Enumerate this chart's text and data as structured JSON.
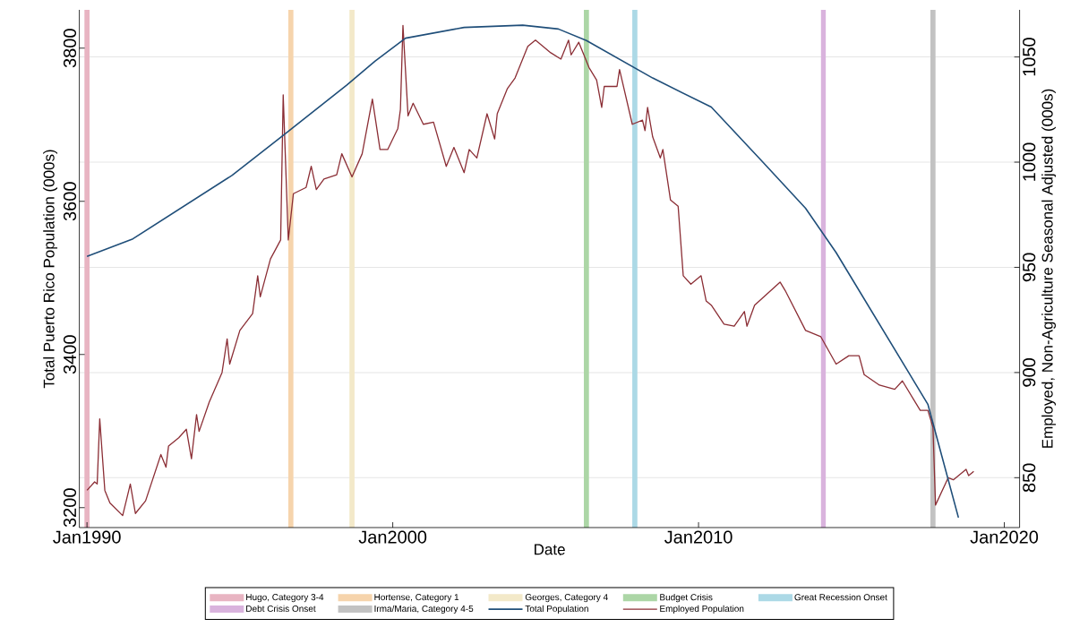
{
  "chart_data": {
    "type": "line",
    "xlabel": "Date",
    "ylabel": "Total Puerto Rico Population (000s)",
    "y2label": "Employed, Non-Agriculture Seasonal Adjusted (000s)",
    "xlim": [
      "1989-10",
      "2020-07"
    ],
    "ylim": [
      3174,
      3850
    ],
    "y2lim": [
      826.3,
      1072.4
    ],
    "xticks": [
      {
        "value": "1990-01",
        "label": "Jan1990"
      },
      {
        "value": "2000-01",
        "label": "Jan2000"
      },
      {
        "value": "2010-01",
        "label": "Jan2010"
      },
      {
        "value": "2020-01",
        "label": "Jan2020"
      }
    ],
    "yticks": [
      3200,
      3400,
      3600,
      3800
    ],
    "y2ticks": [
      850,
      900,
      950,
      1000,
      1050
    ],
    "grid": "y",
    "legend": "bottom",
    "bands": [
      {
        "axis": "x",
        "from": "1989-12",
        "to": "1990-02",
        "label": "Hugo, Category 3-4",
        "color": "#e8b4c2"
      },
      {
        "axis": "x",
        "from": "1996-08",
        "to": "1996-10",
        "label": "Hortense, Category 1",
        "color": "#f6d4ac"
      },
      {
        "axis": "x",
        "from": "1998-08",
        "to": "1998-10",
        "label": "Georges, Category 4",
        "color": "#f3e9c9"
      },
      {
        "axis": "x",
        "from": "2006-04",
        "to": "2006-06",
        "label": "Budget Crisis",
        "color": "#acd6a6"
      },
      {
        "axis": "x",
        "from": "2007-11",
        "to": "2008-01",
        "label": "Great Recession Onset",
        "color": "#acd9e6"
      },
      {
        "axis": "x",
        "from": "2014-01",
        "to": "2014-03",
        "label": "Debt Crisis Onset",
        "color": "#d9b3dd"
      },
      {
        "axis": "x",
        "from": "2017-08",
        "to": "2017-10",
        "label": "Irma/Maria, Category 4-5",
        "color": "#c2c2c2"
      }
    ],
    "series": [
      {
        "name": "Total Population",
        "color": "#1f4e79",
        "x": [
          "1990-01",
          "1991-07",
          "1994-10",
          "1996-06",
          "1998-07",
          "1999-06",
          "2000-06",
          "2002-05",
          "2004-04",
          "2005-06",
          "2006-05",
          "2008-07",
          "2010-06",
          "2012-02",
          "2013-07",
          "2014-07",
          "2017-07",
          "2018-07"
        ],
        "values": [
          3528,
          3551,
          3634,
          3686,
          3752,
          3783,
          3813,
          3827,
          3830,
          3825,
          3810,
          3761,
          3723,
          3652,
          3591,
          3533,
          3335,
          3187
        ]
      },
      {
        "name": "Employed Population",
        "color": "#8b2e35",
        "axis": "y2",
        "x": [
          "1990-01",
          "1990-04",
          "1990-05",
          "1990-06",
          "1990-08",
          "1990-10",
          "1991-03",
          "1991-06",
          "1991-08",
          "1991-12",
          "1992-06",
          "1992-08",
          "1992-09",
          "1993-01",
          "1993-04",
          "1993-06",
          "1993-08",
          "1993-09",
          "1994-01",
          "1994-06",
          "1994-08",
          "1994-09",
          "1995-01",
          "1995-06",
          "1995-08",
          "1995-09",
          "1996-01",
          "1996-05",
          "1996-06",
          "1996-08",
          "1996-10",
          "1997-03",
          "1997-05",
          "1997-07",
          "1997-10",
          "1998-03",
          "1998-05",
          "1998-09",
          "1999-01",
          "1999-05",
          "1999-08",
          "1999-11",
          "2000-03",
          "2000-04",
          "2000-05",
          "2000-07",
          "2000-09",
          "2001-01",
          "2001-05",
          "2001-10",
          "2002-01",
          "2002-05",
          "2002-07",
          "2002-10",
          "2003-02",
          "2003-05",
          "2003-06",
          "2003-10",
          "2004-01",
          "2004-06",
          "2004-09",
          "2005-03",
          "2005-07",
          "2005-10",
          "2005-11",
          "2006-02",
          "2006-06",
          "2006-09",
          "2006-11",
          "2006-12",
          "2007-05",
          "2007-06",
          "2007-11",
          "2008-03",
          "2008-04",
          "2008-05",
          "2008-07",
          "2008-10",
          "2008-11",
          "2009-02",
          "2009-05",
          "2009-07",
          "2009-10",
          "2010-02",
          "2010-04",
          "2010-06",
          "2010-11",
          "2011-03",
          "2011-07",
          "2011-08",
          "2011-11",
          "2012-09",
          "2012-11",
          "2013-07",
          "2014-01",
          "2014-07",
          "2014-12",
          "2015-04",
          "2015-06",
          "2015-12",
          "2016-06",
          "2016-09",
          "2017-04",
          "2017-07",
          "2017-09",
          "2017-10",
          "2018-03",
          "2018-05",
          "2018-10",
          "2018-11",
          "2019-01"
        ],
        "values": [
          844,
          848,
          847,
          878,
          844,
          838,
          832,
          847,
          833,
          839,
          861,
          855,
          865,
          869,
          873,
          859,
          880,
          872,
          886,
          900,
          916,
          904,
          920,
          928,
          946,
          936,
          954,
          963,
          1032,
          963,
          985,
          988,
          998,
          987,
          992,
          994,
          1004,
          993,
          1004,
          1030,
          1006,
          1006,
          1016,
          1025,
          1065,
          1022,
          1028,
          1018,
          1019,
          998,
          1007,
          995,
          1006,
          1002,
          1023,
          1011,
          1023,
          1035,
          1040,
          1055,
          1058,
          1052,
          1049,
          1058,
          1051,
          1057,
          1045,
          1039,
          1026,
          1036,
          1036,
          1044,
          1018,
          1020,
          1015,
          1026,
          1012,
          1002,
          1006,
          982,
          979,
          946,
          942,
          946,
          934,
          932,
          923,
          922,
          929,
          922,
          932,
          943,
          939,
          920,
          917,
          904,
          908,
          908,
          899,
          894,
          892,
          896,
          882,
          882,
          874,
          837,
          850,
          849,
          854,
          851,
          853
        ]
      }
    ]
  }
}
